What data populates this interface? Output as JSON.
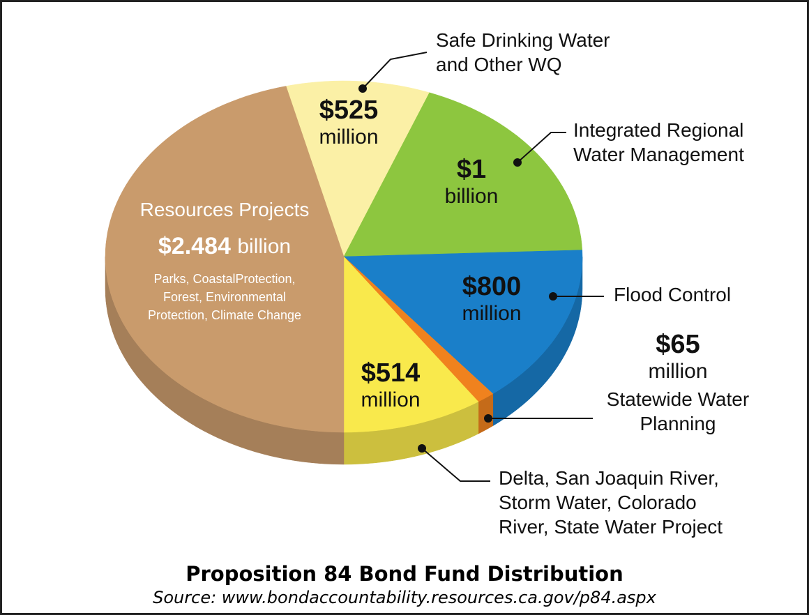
{
  "chart_data": {
    "type": "pie",
    "title": "Proposition 84 Bond Fund Distribution",
    "subtitle": "Source: www.bondaccountability.resources.ca.gov/p84.aspx",
    "categories": [
      "Safe Drinking Water\nand Other WQ",
      "Integrated Regional\nWater Management",
      "Flood Control",
      "Statewide Water\nPlanning",
      "Delta, San Joaquin River,\nStorm Water, Colorado\nRiver, State Water Project",
      "Resources Projects"
    ],
    "values": [
      525,
      1000,
      800,
      65,
      514,
      2484
    ],
    "value_labels": [
      "$525 million",
      "$1 billion",
      "$800 million",
      "$65 million",
      "$514 million",
      "$2.484 billion"
    ],
    "colors": [
      "#fbf0a6",
      "#8dc63f",
      "#1a7fc9",
      "#f0821e",
      "#f9e94c",
      "#c99b6c"
    ],
    "annotations": [
      {
        "text": "Parks, CoastalProtection,\nForest, Environmental\nProtection, Climate Change"
      }
    ]
  }
}
